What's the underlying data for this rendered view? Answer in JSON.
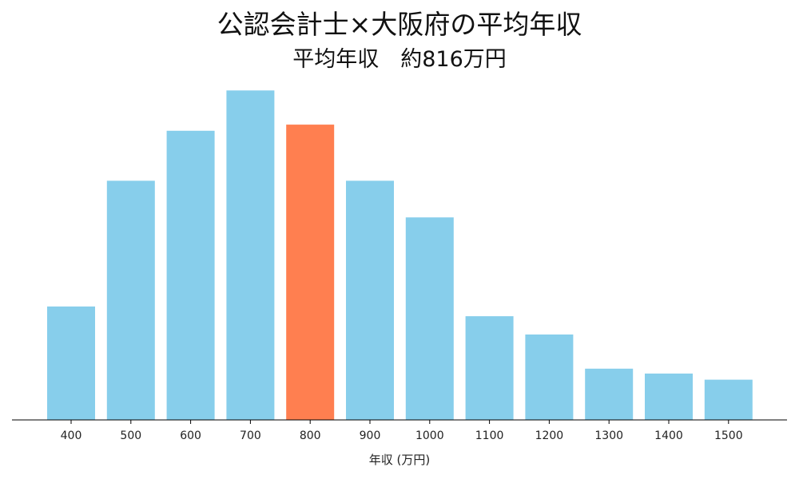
{
  "chart_data": {
    "type": "bar",
    "title": "公認会計士×大阪府の平均年収",
    "subtitle": "平均年収　約816万円",
    "xlabel": "年収 (万円)",
    "ylabel": "",
    "categories": [
      "400",
      "500",
      "600",
      "700",
      "800",
      "900",
      "1000",
      "1100",
      "1200",
      "1300",
      "1400",
      "1500"
    ],
    "values": [
      9.3,
      19.6,
      23.7,
      27.0,
      24.2,
      19.6,
      16.6,
      8.5,
      7.0,
      4.2,
      3.8,
      3.3
    ],
    "ylim": [
      0,
      28.2
    ],
    "highlight_category": "800",
    "colors": {
      "bar": "#87CEEB",
      "highlight": "#FF7F50",
      "axis": "#000000"
    },
    "grid": false,
    "legend": "none"
  }
}
